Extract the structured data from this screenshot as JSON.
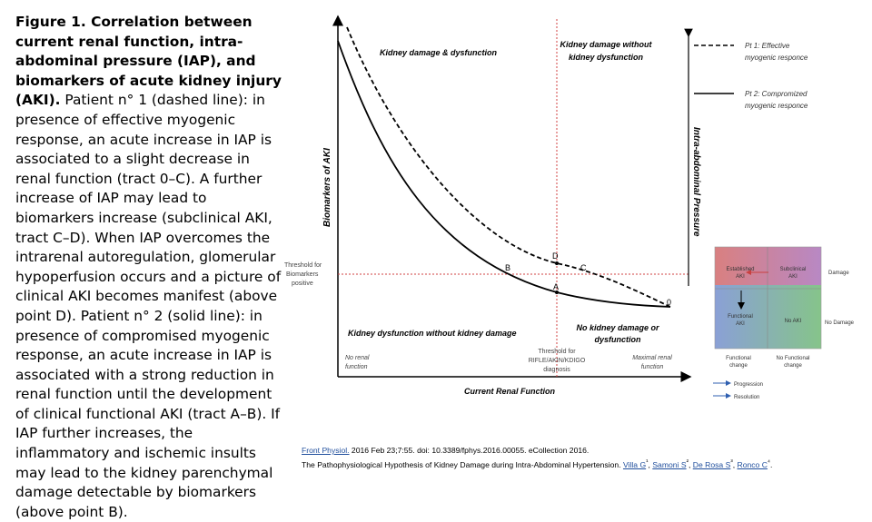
{
  "caption": {
    "bold": "Figure 1. Correlation between current renal function, intra-abdominal pressure (IAP), and biomarkers of acute kidney injury (AKI).",
    "body": " Patient n° 1 (dashed line): in presence of effective myogenic response, an acute increase in IAP is associated to a slight decrease in renal function (tract 0–C). A further increase of IAP may lead to biomarkers increase (subclinical AKI, tract C–D). When IAP overcomes the intrarenal autoregulation, glomerular hypoperfusion occurs and a picture of clinical AKI becomes manifest (above point D). Patient n° 2 (solid line): in presence of compromised myogenic response, an acute increase in IAP is associated with a strong reduction in renal function until the development of clinical functional AKI (tract A–B). If IAP further increases, the inflammatory and ischemic insults may lead to the kidney parenchymal damage detectable by biomarkers (above point B)."
  },
  "diagram": {
    "quadrants": {
      "top_left": "Kidney damage & dysfunction",
      "top_right_1": "Kidney damage without",
      "top_right_2": "kidney dysfunction",
      "bottom_left": "Kidney dysfunction without kidney damage",
      "bottom_right_1": "No kidney damage or",
      "bottom_right_2": "dysfunction"
    },
    "y_axis_label": "Biomarkers of AKI",
    "right_axis_label": "Intra-abdominal Pressure",
    "x_axis_label": "Current Renal Function",
    "threshold_biomarkers": [
      "Threshold for",
      "Biomarkers",
      "positive"
    ],
    "threshold_rifle": [
      "Threshold for",
      "RIFLE/AKIN/KDIGO",
      "diagnosis"
    ],
    "no_renal_function": [
      "No renal",
      "function"
    ],
    "maximal_renal_function": [
      "Maximal renal",
      "function"
    ],
    "points": {
      "A": "A",
      "B": "B",
      "C": "C",
      "D": "D",
      "O": "0"
    },
    "legend": {
      "pt1": [
        "Pt 1: Effective",
        "myogenic responce"
      ],
      "pt2": [
        "Pt 2: Compromized",
        "myogenic responce"
      ]
    }
  },
  "inset": {
    "cells": {
      "established": [
        "Established",
        "AKI"
      ],
      "subclinical": [
        "Subclinical",
        "AKI"
      ],
      "functional": [
        "Functional",
        "AKI"
      ],
      "no_aki": "No AKI"
    },
    "right_top": "Damage",
    "right_bottom": "No Damage",
    "bottom_left": [
      "Functional",
      "change"
    ],
    "bottom_right": [
      "No Functional",
      "change"
    ],
    "legend_progression": "Progression",
    "legend_resolution": "Resolution",
    "colors": {
      "red": "#c94040",
      "purple": "#7a4f9a",
      "blue": "#5a78c0",
      "green": "#4e9a55"
    }
  },
  "footer": {
    "journal": "Front Physiol.",
    "citation": " 2016 Feb 23;7:55. doi: 10.3389/fphys.2016.00055. eCollection 2016.",
    "title": "The Pathophysiological Hypothesis of Kidney Damage during Intra-Abdominal Hypertension. ",
    "authors": [
      "Villa G",
      "Samoni S",
      "De Rosa S",
      "Ronco C"
    ],
    "author_marks": [
      "¹",
      "²",
      "³",
      "⁴"
    ]
  }
}
